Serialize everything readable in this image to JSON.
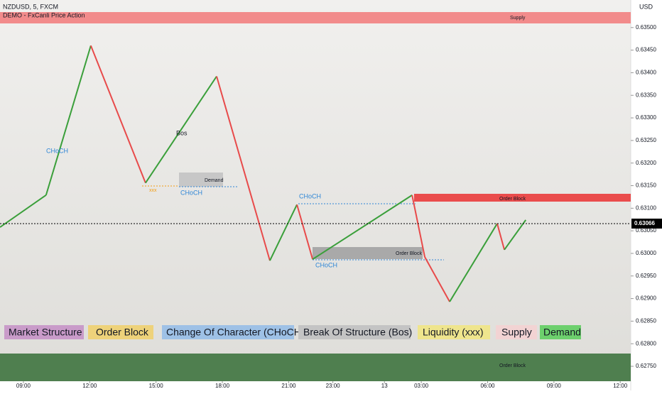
{
  "chart_data": {
    "type": "zigzag",
    "symbol": "NZDUSD, 5, FXCM",
    "indicator": "DEMO - FxCanli Price Action",
    "currency": "USD",
    "x": [
      -12.7,
      12.3,
      36.6,
      66.3,
      104.9,
      133.8,
      148.5,
      157,
      211,
      217.9,
      231.4,
      257.2,
      261.1,
      272.7
    ],
    "values": [
      0.63058,
      0.63129,
      0.6346,
      0.63156,
      0.63392,
      0.62984,
      0.63108,
      0.62987,
      0.63129,
      0.62992,
      0.62893,
      0.63066,
      0.63008,
      0.63074
    ],
    "up_color": "#3a9f3a",
    "down_color": "#e84a4a",
    "last_price": 0.63066,
    "xlim": [
      -12.7,
      329.7
    ],
    "xticks": [
      {
        "value": 0,
        "label": "09:00"
      },
      {
        "value": 36,
        "label": "12:00"
      },
      {
        "value": 72,
        "label": "15:00"
      },
      {
        "value": 108,
        "label": "18:00"
      },
      {
        "value": 144,
        "label": "21:00"
      },
      {
        "value": 168,
        "label": "23:00"
      },
      {
        "value": 196,
        "label": "13"
      },
      {
        "value": 216,
        "label": "03:00"
      },
      {
        "value": 252,
        "label": "06:00"
      },
      {
        "value": 288,
        "label": "09:00"
      },
      {
        "value": 324,
        "label": "12:00"
      }
    ],
    "ylim": [
      0.62717,
      0.63561
    ],
    "yticks": [
      {
        "value": 0.6275,
        "label": "0.62750"
      },
      {
        "value": 0.628,
        "label": "0.62800"
      },
      {
        "value": 0.6285,
        "label": "0.62850"
      },
      {
        "value": 0.629,
        "label": "0.62900"
      },
      {
        "value": 0.6295,
        "label": "0.62950"
      },
      {
        "value": 0.63,
        "label": "0.63000"
      },
      {
        "value": 0.6305,
        "label": "0.63050"
      },
      {
        "value": 0.631,
        "label": "0.63100"
      },
      {
        "value": 0.6315,
        "label": "0.63150"
      },
      {
        "value": 0.632,
        "label": "0.63200"
      },
      {
        "value": 0.6325,
        "label": "0.63250"
      },
      {
        "value": 0.633,
        "label": "0.63300"
      },
      {
        "value": 0.6335,
        "label": "0.63350"
      },
      {
        "value": 0.634,
        "label": "0.63400"
      },
      {
        "value": 0.6345,
        "label": "0.63450"
      },
      {
        "value": 0.635,
        "label": "0.63500"
      }
    ],
    "annotations": [
      "CHoCH",
      "Bos",
      "CHoCH",
      "xxx",
      "CHoCH",
      "CHoCH",
      "Demand",
      "Order Block",
      "Order Block",
      "Supply",
      "Order Block"
    ],
    "legend": [
      "Market Structure",
      "Order Block",
      "Change Of Character (CHoCH)",
      "Break Of Structure (Bos)",
      "Liquidity (xxx)",
      "Supply",
      "Demand"
    ]
  }
}
